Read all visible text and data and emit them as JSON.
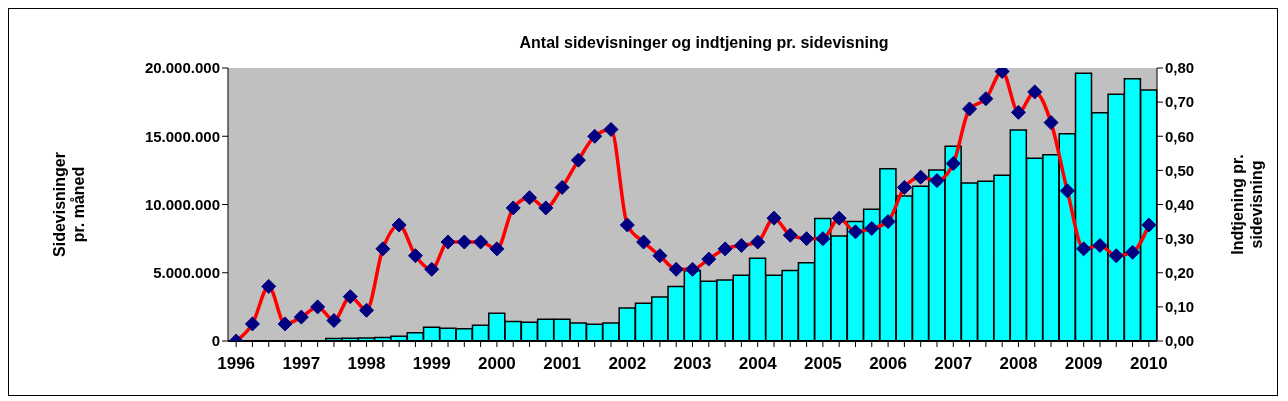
{
  "chart_data": {
    "type": "bar",
    "title": "Antal sidevisninger og indtjening pr. sidevisning",
    "ylabel": "Sidevisninger pr. måned",
    "y2label": "Indtjening pr. sidevisning",
    "categories": [
      "1996",
      null,
      null,
      null,
      "1997",
      null,
      null,
      null,
      "1998",
      null,
      null,
      null,
      "1999",
      null,
      null,
      null,
      "2000",
      null,
      null,
      null,
      "2001",
      null,
      null,
      null,
      "2002",
      null,
      null,
      null,
      "2003",
      null,
      null,
      null,
      "2004",
      null,
      null,
      null,
      "2005",
      null,
      null,
      null,
      "2006",
      null,
      null,
      null,
      "2007",
      null,
      null,
      null,
      "2008",
      null,
      null,
      null,
      "2009",
      null,
      null,
      null,
      "2010"
    ],
    "series": [
      {
        "color": "#00ffff",
        "values": [
          0,
          20000,
          null,
          null,
          null,
          null,
          180000,
          200000,
          220000,
          250000,
          350000,
          600000,
          1000000,
          930000,
          900000,
          1150000,
          2030000,
          1420000,
          1370000,
          1590000,
          1590000,
          1320000,
          1220000,
          1320000,
          2420000,
          2770000,
          3230000,
          3990000,
          5140000,
          4380000,
          4460000,
          4820000,
          6070000,
          4820000,
          5170000,
          5730000,
          8980000,
          7690000,
          8760000,
          9650000,
          12610000,
          10620000,
          11330000,
          12530000,
          14270000,
          11580000,
          11700000,
          12140000,
          15450000,
          13390000,
          13640000,
          15180000,
          19610000,
          16720000,
          18070000,
          19220000,
          18380000
        ]
      },
      {
        "type": "line",
        "axis": "y2",
        "color": "#ff0000",
        "marker": "diamond",
        "values": [
          0,
          0.05,
          0.16,
          0.05,
          0.07,
          0.1,
          0.06,
          0.13,
          0.09,
          0.27,
          0.34,
          0.25,
          0.21,
          0.29,
          0.29,
          0.29,
          0.27,
          0.39,
          0.42,
          0.39,
          0.45,
          0.53,
          0.6,
          0.62,
          0.34,
          0.29,
          0.25,
          0.21,
          0.21,
          0.24,
          0.27,
          0.28,
          0.29,
          0.36,
          0.31,
          0.3,
          0.3,
          0.36,
          0.32,
          0.33,
          0.35,
          0.45,
          0.48,
          0.47,
          0.52,
          0.68,
          0.71,
          0.79,
          0.67,
          0.73,
          0.64,
          0.44,
          0.27,
          0.28,
          0.25,
          0.26,
          0.34
        ]
      }
    ],
    "ylim": [
      0,
      20000000
    ],
    "yticks": [
      0,
      {
        "value": 5000000,
        "label": "5.000.000"
      },
      {
        "value": 10000000,
        "label": "10.000.000"
      },
      {
        "value": 15000000,
        "label": "15.000.000"
      },
      {
        "value": 20000000,
        "label": "20.000.000"
      }
    ],
    "y2lim": [
      0,
      0.8
    ],
    "y2ticks": [
      {
        "value": 0,
        "label": "0,00"
      },
      {
        "value": 0.1,
        "label": "0,10"
      },
      {
        "value": 0.2,
        "label": "0,20"
      },
      {
        "value": 0.3,
        "label": "0,30"
      },
      {
        "value": 0.4,
        "label": "0,40"
      },
      {
        "value": 0.5,
        "label": "0,50"
      },
      {
        "value": 0.6,
        "label": "0,60"
      },
      {
        "value": 0.7,
        "label": "0,70"
      },
      {
        "value": 0.8,
        "label": "0,80"
      }
    ]
  }
}
